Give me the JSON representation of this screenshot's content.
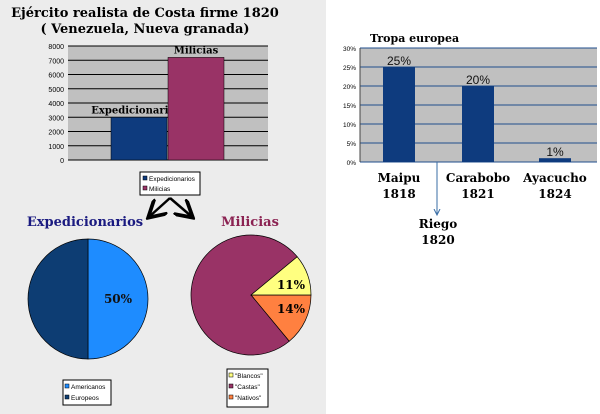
{
  "chart_data": [
    {
      "type": "bar",
      "title": "Ejército realista de Costa firme 1820",
      "subtitle": "( Venezuela, Nueva granada)",
      "categories": [
        "Expedicionarios",
        "Milicias"
      ],
      "values": [
        3000,
        7200
      ],
      "colors": [
        "#0e3b7e",
        "#993366"
      ],
      "ylim": [
        0,
        8000
      ],
      "yticks": [
        "0",
        "1000",
        "2000",
        "3000",
        "4000",
        "5000",
        "6000",
        "7000",
        "8000"
      ],
      "grid": true,
      "legend": [
        "Expedicionarios",
        "Milicias"
      ],
      "legend_placement": "bottom"
    },
    {
      "type": "pie",
      "title": "Expedicionarios",
      "slices": [
        {
          "label": "Americanos",
          "value": 50,
          "color": "#1e8cff"
        },
        {
          "label": "Europeos",
          "value": 50,
          "color": "#0d3d73"
        }
      ],
      "data_labels": [
        "50%"
      ],
      "legend_placement": "bottom"
    },
    {
      "type": "pie",
      "title": "Milicias",
      "slices": [
        {
          "label": "\"Blancos\"",
          "value": 11,
          "color": "#ffff80"
        },
        {
          "label": "\"Castas\"",
          "value": 75,
          "color": "#993366"
        },
        {
          "label": "\"Nativos\"",
          "value": 14,
          "color": "#ff8040"
        }
      ],
      "data_labels": [
        "11%",
        "14%"
      ],
      "legend_placement": "bottom"
    },
    {
      "type": "bar",
      "title": "Tropa europea",
      "categories": [
        "Maipu\n1818",
        "Carabobo\n1821",
        "Ayacucho\n1824"
      ],
      "values": [
        25,
        20,
        1
      ],
      "data_labels": [
        "25%",
        "20%",
        "1%"
      ],
      "color": "#0e3b7e",
      "ylim": [
        0,
        30
      ],
      "yticks": [
        "0%",
        "5%",
        "10%",
        "15%",
        "20%",
        "25%",
        "30%"
      ],
      "grid": true,
      "annotation": "Riego\n1820"
    }
  ]
}
